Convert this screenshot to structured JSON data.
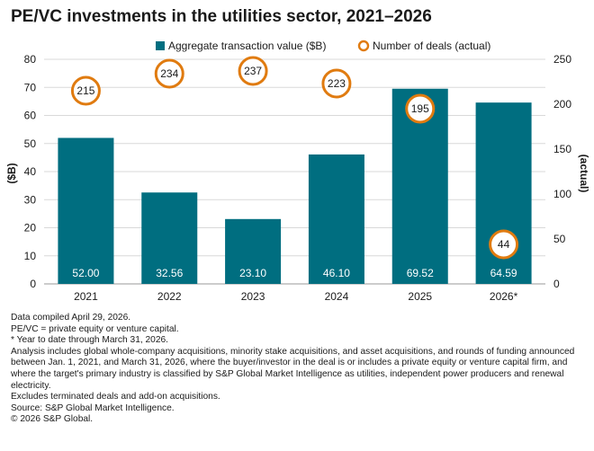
{
  "title": "PE/VC investments in the utilities sector, 2021–2026",
  "colors": {
    "bar": "#006e80",
    "deal_ring": "#e07b10",
    "grid": "#d9d9d9"
  },
  "chart_data": {
    "type": "bar",
    "categories": [
      "2021",
      "2022",
      "2023",
      "2024",
      "2025",
      "2026*"
    ],
    "series": [
      {
        "name": "Aggregate transaction value ($B)",
        "type": "bar",
        "axis": "left",
        "values": [
          52.0,
          32.56,
          23.1,
          46.1,
          69.52,
          64.59
        ],
        "labels": [
          "52.00",
          "32.56",
          "23.10",
          "46.10",
          "69.52",
          "64.59"
        ]
      },
      {
        "name": "Number of deals (actual)",
        "type": "scatter",
        "axis": "right",
        "values": [
          215,
          234,
          237,
          223,
          195,
          44
        ],
        "labels": [
          "215",
          "234",
          "237",
          "223",
          "195",
          "44"
        ]
      }
    ],
    "ylabel": "($B)",
    "ylabel_right": "(actual)",
    "ylim": [
      0,
      80
    ],
    "ylim_right": [
      0,
      250
    ],
    "yticks": [
      "0",
      "10",
      "20",
      "30",
      "40",
      "50",
      "60",
      "70",
      "80"
    ],
    "yticks_right": [
      "0",
      "50",
      "100",
      "150",
      "200",
      "250"
    ],
    "grid": true,
    "legend_position": "top"
  },
  "notes": [
    "Data compiled April 29, 2026.",
    "PE/VC = private equity or venture capital.",
    "* Year to date through March 31, 2026.",
    "Analysis includes global whole-company acquisitions, minority stake acquisitions, and asset acquisitions, and rounds of funding announced between Jan. 1, 2021, and March 31, 2026, where the buyer/investor in the deal is or includes a private equity or venture capital firm, and where the target's primary industry is classified by S&P Global Market Intelligence as utilities, independent power producers and renewal electricity.",
    "Excludes terminated deals and add-on acquisitions.",
    "Source: S&P Global Market Intelligence.",
    "© 2026 S&P Global."
  ]
}
